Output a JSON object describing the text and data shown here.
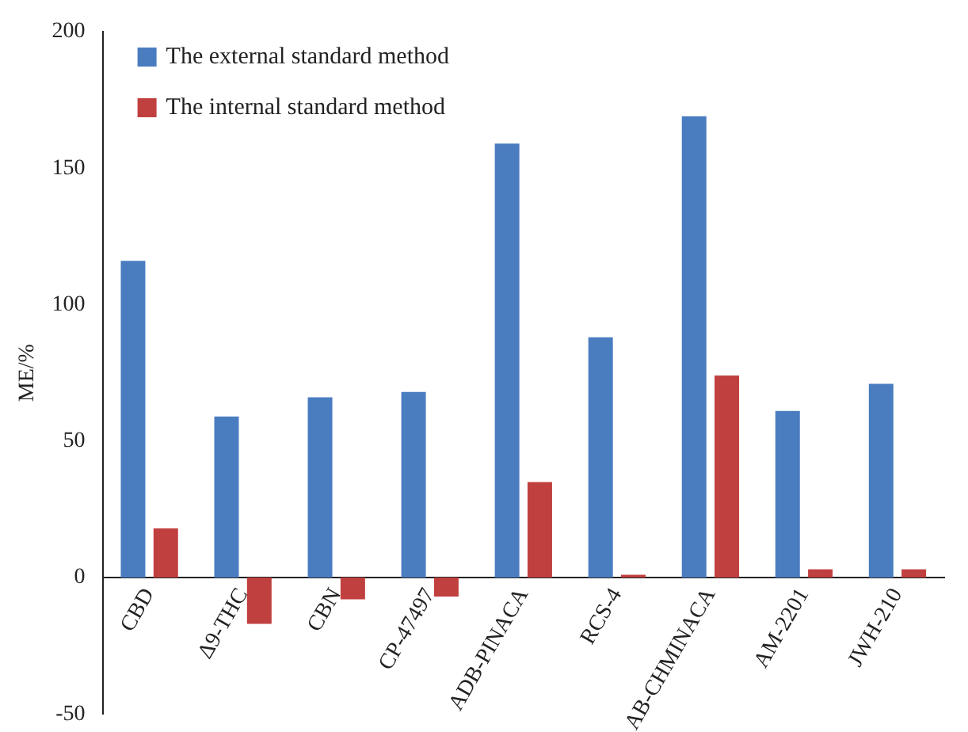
{
  "chart_data": {
    "type": "bar",
    "ylabel": "ME/%",
    "categories": [
      "CBD",
      "Δ9-THC",
      "CBN",
      "CP-47497",
      "ADB-PINACA",
      "RCS-4",
      "AB-CHMINACA",
      "AM-2201",
      "JWH-210"
    ],
    "series": [
      {
        "name": "The external standard method",
        "color": "#4a7cc0",
        "values": [
          116,
          59,
          66,
          68,
          159,
          88,
          169,
          61,
          71
        ]
      },
      {
        "name": "The internal standard method",
        "color": "#c0403f",
        "values": [
          18,
          -17,
          -8,
          -7,
          35,
          1,
          74,
          3,
          3
        ]
      }
    ],
    "ylim": [
      -50,
      200
    ],
    "yticks": [
      -50,
      0,
      50,
      100,
      150,
      200
    ],
    "grid": false,
    "legend": "top left"
  }
}
